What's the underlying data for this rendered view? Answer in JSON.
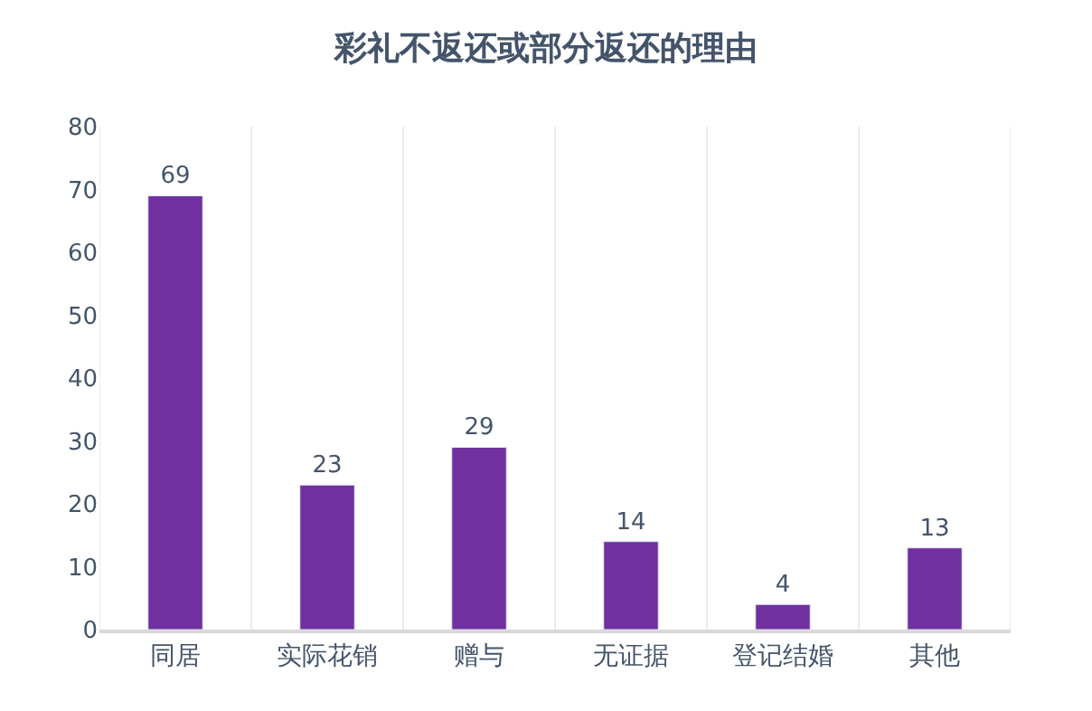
{
  "chart_data": {
    "type": "bar",
    "title": "彩礼不返还或部分返还的理由",
    "categories": [
      "同居",
      "实际花销",
      "赠与",
      "无证据",
      "登记结婚",
      "其他"
    ],
    "values": [
      69,
      23,
      29,
      14,
      4,
      13
    ],
    "color": "#7030a0",
    "ylim": [
      0,
      80
    ],
    "yticks": [
      0,
      10,
      20,
      30,
      40,
      50,
      60,
      70,
      80
    ],
    "grid": "x",
    "data_labels": true
  }
}
